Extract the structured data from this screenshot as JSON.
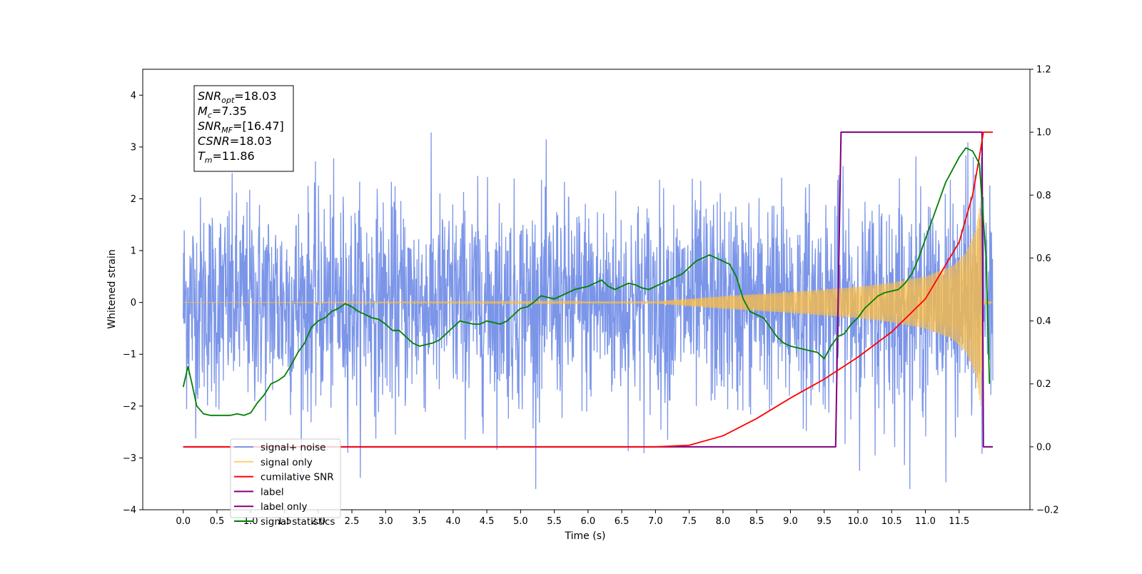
{
  "chart_data": {
    "type": "line",
    "xlabel": "Time (s)",
    "ylabel": "Whitened strain",
    "xlim": [
      -0.6,
      12.55
    ],
    "ylim": [
      -4,
      4.5
    ],
    "y2lim": [
      -0.2,
      1.2
    ],
    "x_ticks": [
      "0.0",
      "0.5",
      "1.0",
      "1.5",
      "2.0",
      "2.5",
      "3.0",
      "3.5",
      "4.0",
      "4.5",
      "5.0",
      "5.5",
      "6.0",
      "6.5",
      "7.0",
      "7.5",
      "8.0",
      "8.5",
      "9.0",
      "9.5",
      "10.0",
      "10.5",
      "11.0",
      "11.5"
    ],
    "y_ticks": [
      "−4",
      "−3",
      "−2",
      "−1",
      "0",
      "1",
      "2",
      "3",
      "4"
    ],
    "y2_ticks": [
      "−0.2",
      "0.0",
      "0.2",
      "0.4",
      "0.6",
      "0.8",
      "1.0",
      "1.2"
    ],
    "grid": false,
    "legend_position": "lower-left",
    "info_box": {
      "lines": [
        {
          "main": "SNR",
          "sub": "opt",
          "value": "=18.03"
        },
        {
          "main": "M",
          "sub": "c",
          "value": "=7.35"
        },
        {
          "main": "SNR",
          "sub": "MF",
          "value": "=[16.47]"
        },
        {
          "main": "CSNR",
          "sub": "",
          "value": "=18.03"
        },
        {
          "main": "T",
          "sub": "m",
          "value": "=11.86"
        }
      ]
    },
    "series": [
      {
        "name": "signal+ noise",
        "axis": "left",
        "color": "#7b95e8",
        "approx_range": [
          -3.6,
          4.12
        ],
        "noise_std": 1.0,
        "x_start": 0.0,
        "x_end": 12.0
      },
      {
        "name": "signal only",
        "axis": "left",
        "color": "#ffbf40",
        "envelope": {
          "x": [
            0.0,
            7.0,
            8.0,
            9.0,
            9.5,
            10.0,
            10.5,
            11.0,
            11.4,
            11.6,
            11.75,
            11.82,
            11.86,
            12.0
          ],
          "amp": [
            0.0,
            0.02,
            0.12,
            0.2,
            0.25,
            0.3,
            0.38,
            0.5,
            0.7,
            0.95,
            1.4,
            2.0,
            0.05,
            0.0
          ]
        }
      },
      {
        "name": "cumilative SNR",
        "axis": "right",
        "color": "#ff0000",
        "x": [
          0.0,
          7.0,
          7.5,
          8.0,
          8.5,
          9.0,
          9.5,
          10.0,
          10.5,
          11.0,
          11.5,
          11.7,
          11.8,
          11.86,
          12.0
        ],
        "y": [
          0.0,
          0.0,
          0.005,
          0.035,
          0.09,
          0.155,
          0.215,
          0.285,
          0.365,
          0.47,
          0.65,
          0.8,
          0.92,
          1.0,
          1.0
        ]
      },
      {
        "name": "label",
        "axis": "right",
        "color": "#800080",
        "x": [
          0.0,
          9.67,
          9.75,
          11.84,
          11.86,
          12.0
        ],
        "y": [
          0.0,
          0.0,
          1.0,
          1.0,
          0.0,
          0.0
        ]
      },
      {
        "name": "label only",
        "axis": "right",
        "color": "#800080",
        "x": [],
        "y": []
      },
      {
        "name": "signal statistics",
        "axis": "right",
        "color": "#008000",
        "x": [
          0.0,
          0.07,
          0.13,
          0.2,
          0.3,
          0.4,
          0.5,
          0.6,
          0.7,
          0.8,
          0.9,
          1.0,
          1.1,
          1.2,
          1.3,
          1.4,
          1.5,
          1.6,
          1.7,
          1.8,
          1.9,
          2.0,
          2.1,
          2.2,
          2.3,
          2.4,
          2.5,
          2.6,
          2.7,
          2.8,
          2.9,
          3.0,
          3.1,
          3.2,
          3.3,
          3.4,
          3.5,
          3.6,
          3.7,
          3.8,
          3.9,
          4.0,
          4.1,
          4.2,
          4.3,
          4.4,
          4.5,
          4.6,
          4.7,
          4.8,
          4.9,
          5.0,
          5.1,
          5.2,
          5.3,
          5.4,
          5.5,
          5.6,
          5.7,
          5.8,
          5.9,
          6.0,
          6.1,
          6.2,
          6.3,
          6.4,
          6.5,
          6.6,
          6.7,
          6.8,
          6.9,
          7.0,
          7.1,
          7.2,
          7.3,
          7.4,
          7.5,
          7.6,
          7.7,
          7.8,
          7.9,
          8.0,
          8.1,
          8.2,
          8.3,
          8.4,
          8.5,
          8.6,
          8.7,
          8.8,
          8.9,
          9.0,
          9.1,
          9.2,
          9.3,
          9.4,
          9.5,
          9.6,
          9.7,
          9.8,
          9.9,
          10.0,
          10.1,
          10.2,
          10.3,
          10.4,
          10.5,
          10.6,
          10.7,
          10.8,
          10.9,
          11.0,
          11.1,
          11.2,
          11.3,
          11.4,
          11.5,
          11.6,
          11.7,
          11.8,
          11.9,
          11.95
        ],
        "y": [
          0.19,
          0.255,
          0.2,
          0.13,
          0.105,
          0.1,
          0.1,
          0.1,
          0.1,
          0.105,
          0.1,
          0.108,
          0.14,
          0.165,
          0.2,
          0.21,
          0.225,
          0.26,
          0.3,
          0.33,
          0.38,
          0.4,
          0.41,
          0.43,
          0.44,
          0.455,
          0.445,
          0.43,
          0.42,
          0.41,
          0.405,
          0.39,
          0.37,
          0.37,
          0.35,
          0.33,
          0.32,
          0.325,
          0.33,
          0.34,
          0.36,
          0.38,
          0.4,
          0.395,
          0.39,
          0.39,
          0.4,
          0.395,
          0.39,
          0.4,
          0.42,
          0.44,
          0.445,
          0.46,
          0.48,
          0.475,
          0.47,
          0.48,
          0.49,
          0.5,
          0.505,
          0.51,
          0.52,
          0.53,
          0.51,
          0.5,
          0.51,
          0.52,
          0.515,
          0.505,
          0.5,
          0.51,
          0.52,
          0.53,
          0.54,
          0.55,
          0.57,
          0.59,
          0.6,
          0.61,
          0.6,
          0.59,
          0.58,
          0.54,
          0.47,
          0.43,
          0.42,
          0.41,
          0.38,
          0.35,
          0.33,
          0.32,
          0.315,
          0.31,
          0.305,
          0.3,
          0.28,
          0.32,
          0.35,
          0.36,
          0.39,
          0.41,
          0.44,
          0.46,
          0.48,
          0.49,
          0.495,
          0.5,
          0.52,
          0.55,
          0.6,
          0.66,
          0.72,
          0.78,
          0.84,
          0.88,
          0.92,
          0.95,
          0.94,
          0.9,
          0.6,
          0.2
        ]
      }
    ]
  }
}
